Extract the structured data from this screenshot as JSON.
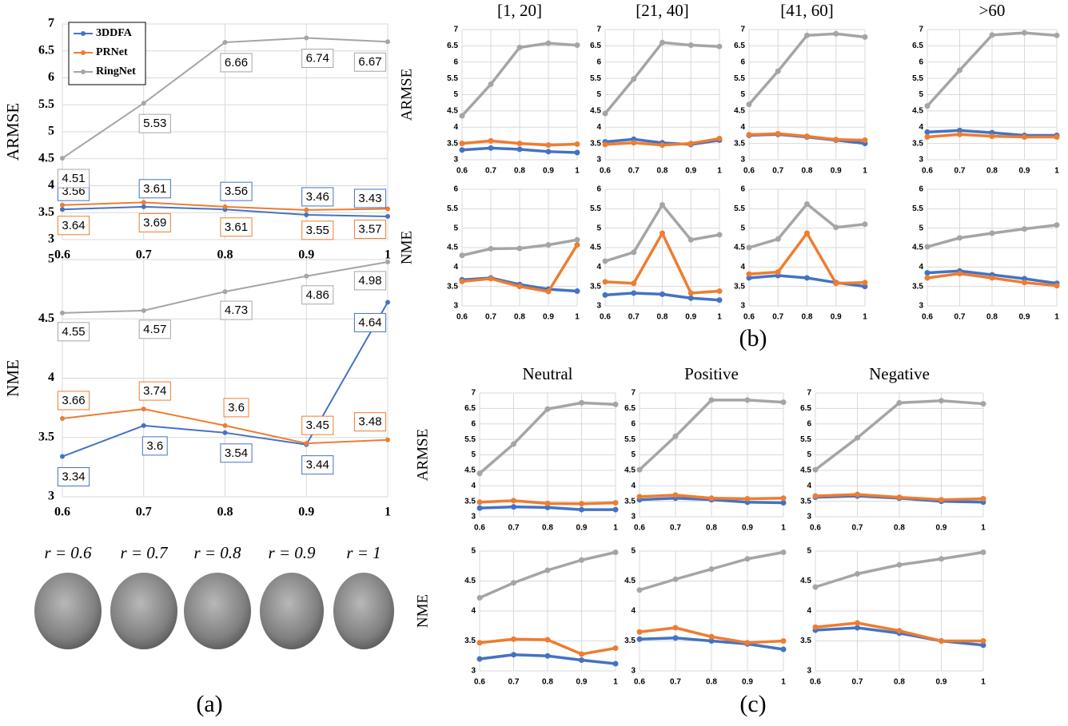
{
  "figure": {
    "panel_labels": [
      "(a)",
      "(b)",
      "(c)"
    ],
    "face_labels": [
      "r = 0.6",
      "r = 0.7",
      "r = 0.8",
      "r = 0.9",
      "r = 1"
    ]
  },
  "chart_data": [
    {
      "type": "line",
      "ylabel": "ARMSE",
      "x": [
        0.6,
        0.7,
        0.8,
        0.9,
        1
      ],
      "xlim": [
        0.6,
        1
      ],
      "xticks": [
        0.6,
        0.7,
        0.8,
        0.9,
        1
      ],
      "ylim": [
        3,
        7
      ],
      "yticks": [
        3,
        3.5,
        4,
        4.5,
        5,
        5.5,
        6,
        6.5,
        7
      ],
      "grid": true,
      "legend": "upper left",
      "data_labels": true,
      "series": [
        {
          "name": "3DDFA",
          "color": "#4472c4",
          "values": [
            3.56,
            3.61,
            3.56,
            3.46,
            3.43
          ]
        },
        {
          "name": "PRNet",
          "color": "#ed7d31",
          "values": [
            3.64,
            3.69,
            3.61,
            3.55,
            3.57
          ]
        },
        {
          "name": "RingNet",
          "color": "#a5a5a5",
          "values": [
            4.51,
            5.53,
            6.66,
            6.74,
            6.67
          ]
        }
      ]
    },
    {
      "type": "line",
      "ylabel": "NME",
      "x": [
        0.6,
        0.7,
        0.8,
        0.9,
        1
      ],
      "xlim": [
        0.6,
        1
      ],
      "xticks": [
        0.6,
        0.7,
        0.8,
        0.9,
        1
      ],
      "ylim": [
        3,
        5
      ],
      "yticks": [
        3,
        3.5,
        4,
        4.5,
        5
      ],
      "grid": true,
      "data_labels": true,
      "series": [
        {
          "color": "#4472c4",
          "values": [
            3.34,
            3.6,
            3.54,
            3.44,
            4.64
          ]
        },
        {
          "color": "#ed7d31",
          "values": [
            3.66,
            3.74,
            3.6,
            3.45,
            3.48
          ]
        },
        {
          "color": "#a5a5a5",
          "values": [
            4.55,
            4.57,
            4.73,
            4.86,
            4.98
          ]
        }
      ]
    },
    {
      "type": "line",
      "title": "[1, 20]",
      "ylabel": "ARMSE",
      "x": [
        0.6,
        0.7,
        0.8,
        0.9,
        1
      ],
      "xlim": [
        0.6,
        1
      ],
      "xticks": [
        0.6,
        0.7,
        0.8,
        0.9,
        1
      ],
      "ylim": [
        3,
        7
      ],
      "yticks": [
        3,
        3.5,
        4,
        4.5,
        5,
        5.5,
        6,
        6.5,
        7
      ],
      "grid": true,
      "series": [
        {
          "color": "#4472c4",
          "values": [
            3.3,
            3.36,
            3.32,
            3.25,
            3.22
          ]
        },
        {
          "color": "#ed7d31",
          "values": [
            3.5,
            3.58,
            3.5,
            3.45,
            3.48
          ]
        },
        {
          "color": "#a5a5a5",
          "values": [
            4.35,
            5.32,
            6.45,
            6.58,
            6.52
          ]
        }
      ]
    },
    {
      "type": "line",
      "title": "[21, 40]",
      "x": [
        0.6,
        0.7,
        0.8,
        0.9,
        1
      ],
      "xlim": [
        0.6,
        1
      ],
      "xticks": [
        0.6,
        0.7,
        0.8,
        0.9,
        1
      ],
      "ylim": [
        3,
        7
      ],
      "yticks": [
        3,
        3.5,
        4,
        4.5,
        5,
        5.5,
        6,
        6.5,
        7
      ],
      "grid": true,
      "series": [
        {
          "color": "#4472c4",
          "values": [
            3.55,
            3.63,
            3.52,
            3.47,
            3.6
          ]
        },
        {
          "color": "#ed7d31",
          "values": [
            3.47,
            3.52,
            3.45,
            3.5,
            3.65
          ]
        },
        {
          "color": "#a5a5a5",
          "values": [
            4.42,
            5.48,
            6.6,
            6.52,
            6.48
          ]
        }
      ]
    },
    {
      "type": "line",
      "title": "[41, 60]",
      "x": [
        0.6,
        0.7,
        0.8,
        0.9,
        1
      ],
      "xlim": [
        0.6,
        1
      ],
      "xticks": [
        0.6,
        0.7,
        0.8,
        0.9,
        1
      ],
      "ylim": [
        3,
        7
      ],
      "yticks": [
        3,
        3.5,
        4,
        4.5,
        5,
        5.5,
        6,
        6.5,
        7
      ],
      "grid": true,
      "series": [
        {
          "color": "#4472c4",
          "values": [
            3.75,
            3.78,
            3.7,
            3.6,
            3.5
          ]
        },
        {
          "color": "#ed7d31",
          "values": [
            3.77,
            3.8,
            3.72,
            3.62,
            3.6
          ]
        },
        {
          "color": "#a5a5a5",
          "values": [
            4.7,
            5.72,
            6.82,
            6.87,
            6.77
          ]
        }
      ]
    },
    {
      "type": "line",
      "title": ">60",
      "x": [
        0.6,
        0.7,
        0.8,
        0.9,
        1
      ],
      "xlim": [
        0.6,
        1
      ],
      "xticks": [
        0.6,
        0.7,
        0.8,
        0.9,
        1
      ],
      "ylim": [
        3,
        7
      ],
      "yticks": [
        3,
        3.5,
        4,
        4.5,
        5,
        5.5,
        6,
        6.5,
        7
      ],
      "grid": true,
      "series": [
        {
          "color": "#4472c4",
          "values": [
            3.85,
            3.9,
            3.83,
            3.75,
            3.75
          ]
        },
        {
          "color": "#ed7d31",
          "values": [
            3.7,
            3.78,
            3.72,
            3.7,
            3.7
          ]
        },
        {
          "color": "#a5a5a5",
          "values": [
            4.65,
            5.75,
            6.83,
            6.9,
            6.82
          ]
        }
      ]
    },
    {
      "type": "line",
      "ylabel": "NME",
      "x": [
        0.6,
        0.7,
        0.8,
        0.9,
        1
      ],
      "xlim": [
        0.6,
        1
      ],
      "xticks": [
        0.6,
        0.7,
        0.8,
        0.9,
        1
      ],
      "ylim": [
        3,
        6
      ],
      "yticks": [
        3,
        3.5,
        4,
        4.5,
        5,
        5.5,
        6
      ],
      "grid": true,
      "series": [
        {
          "color": "#4472c4",
          "values": [
            3.67,
            3.72,
            3.55,
            3.43,
            3.38
          ]
        },
        {
          "color": "#ed7d31",
          "values": [
            3.63,
            3.7,
            3.5,
            3.37,
            4.57
          ]
        },
        {
          "color": "#a5a5a5",
          "values": [
            4.3,
            4.47,
            4.48,
            4.57,
            4.7
          ]
        }
      ]
    },
    {
      "type": "line",
      "x": [
        0.6,
        0.7,
        0.8,
        0.9,
        1
      ],
      "xlim": [
        0.6,
        1
      ],
      "xticks": [
        0.6,
        0.7,
        0.8,
        0.9,
        1
      ],
      "ylim": [
        3,
        6
      ],
      "yticks": [
        3,
        3.5,
        4,
        4.5,
        5,
        5.5,
        6
      ],
      "grid": true,
      "series": [
        {
          "color": "#4472c4",
          "values": [
            3.28,
            3.33,
            3.3,
            3.2,
            3.15
          ]
        },
        {
          "color": "#ed7d31",
          "values": [
            3.62,
            3.58,
            4.87,
            3.33,
            3.38
          ]
        },
        {
          "color": "#a5a5a5",
          "values": [
            4.15,
            4.38,
            5.6,
            4.7,
            4.83
          ]
        }
      ]
    },
    {
      "type": "line",
      "x": [
        0.6,
        0.7,
        0.8,
        0.9,
        1
      ],
      "xlim": [
        0.6,
        1
      ],
      "xticks": [
        0.6,
        0.7,
        0.8,
        0.9,
        1
      ],
      "ylim": [
        3,
        6
      ],
      "yticks": [
        3,
        3.5,
        4,
        4.5,
        5,
        5.5,
        6
      ],
      "grid": true,
      "series": [
        {
          "color": "#4472c4",
          "values": [
            3.72,
            3.78,
            3.72,
            3.6,
            3.5
          ]
        },
        {
          "color": "#ed7d31",
          "values": [
            3.82,
            3.87,
            4.87,
            3.58,
            3.6
          ]
        },
        {
          "color": "#a5a5a5",
          "values": [
            4.5,
            4.72,
            5.62,
            5.02,
            5.1
          ]
        }
      ]
    },
    {
      "type": "line",
      "x": [
        0.6,
        0.7,
        0.8,
        0.9,
        1
      ],
      "xlim": [
        0.6,
        1
      ],
      "xticks": [
        0.6,
        0.7,
        0.8,
        0.9,
        1
      ],
      "ylim": [
        3,
        6
      ],
      "yticks": [
        3,
        3.5,
        4,
        4.5,
        5,
        5.5,
        6
      ],
      "grid": true,
      "series": [
        {
          "color": "#4472c4",
          "values": [
            3.85,
            3.9,
            3.8,
            3.7,
            3.58
          ]
        },
        {
          "color": "#ed7d31",
          "values": [
            3.72,
            3.83,
            3.72,
            3.6,
            3.52
          ]
        },
        {
          "color": "#a5a5a5",
          "values": [
            4.52,
            4.75,
            4.87,
            4.98,
            5.08
          ]
        }
      ]
    },
    {
      "type": "line",
      "title": "Neutral",
      "ylabel": "ARMSE",
      "x": [
        0.6,
        0.7,
        0.8,
        0.9,
        1
      ],
      "xlim": [
        0.6,
        1
      ],
      "xticks": [
        0.6,
        0.7,
        0.8,
        0.9,
        1
      ],
      "ylim": [
        3,
        7
      ],
      "yticks": [
        3,
        3.5,
        4,
        4.5,
        5,
        5.5,
        6,
        6.5,
        7
      ],
      "grid": true,
      "series": [
        {
          "color": "#4472c4",
          "values": [
            3.28,
            3.32,
            3.3,
            3.23,
            3.23
          ]
        },
        {
          "color": "#ed7d31",
          "values": [
            3.47,
            3.52,
            3.43,
            3.42,
            3.45
          ]
        },
        {
          "color": "#a5a5a5",
          "values": [
            4.4,
            5.35,
            6.48,
            6.68,
            6.63
          ]
        }
      ]
    },
    {
      "type": "line",
      "title": "Positive",
      "x": [
        0.6,
        0.7,
        0.8,
        0.9,
        1
      ],
      "xlim": [
        0.6,
        1
      ],
      "xticks": [
        0.6,
        0.7,
        0.8,
        0.9,
        1
      ],
      "ylim": [
        3,
        7
      ],
      "yticks": [
        3,
        3.5,
        4,
        4.5,
        5,
        5.5,
        6,
        6.5,
        7
      ],
      "grid": true,
      "series": [
        {
          "color": "#4472c4",
          "values": [
            3.55,
            3.6,
            3.55,
            3.47,
            3.45
          ]
        },
        {
          "color": "#ed7d31",
          "values": [
            3.65,
            3.7,
            3.6,
            3.58,
            3.6
          ]
        },
        {
          "color": "#a5a5a5",
          "values": [
            4.52,
            5.6,
            6.77,
            6.77,
            6.7
          ]
        }
      ]
    },
    {
      "type": "line",
      "title": "Negative",
      "x": [
        0.6,
        0.7,
        0.8,
        0.9,
        1
      ],
      "xlim": [
        0.6,
        1
      ],
      "xticks": [
        0.6,
        0.7,
        0.8,
        0.9,
        1
      ],
      "ylim": [
        3,
        7
      ],
      "yticks": [
        3,
        3.5,
        4,
        4.5,
        5,
        5.5,
        6,
        6.5,
        7
      ],
      "grid": true,
      "series": [
        {
          "color": "#4472c4",
          "values": [
            3.63,
            3.67,
            3.6,
            3.5,
            3.47
          ]
        },
        {
          "color": "#ed7d31",
          "values": [
            3.67,
            3.72,
            3.63,
            3.55,
            3.58
          ]
        },
        {
          "color": "#a5a5a5",
          "values": [
            4.52,
            5.55,
            6.68,
            6.75,
            6.65
          ]
        }
      ]
    },
    {
      "type": "line",
      "ylabel": "NME",
      "x": [
        0.6,
        0.7,
        0.8,
        0.9,
        1
      ],
      "xlim": [
        0.6,
        1
      ],
      "xticks": [
        0.6,
        0.7,
        0.8,
        0.9,
        1
      ],
      "ylim": [
        3,
        5
      ],
      "yticks": [
        3,
        3.5,
        4,
        4.5,
        5
      ],
      "grid": true,
      "series": [
        {
          "color": "#4472c4",
          "values": [
            3.2,
            3.27,
            3.25,
            3.18,
            3.12
          ]
        },
        {
          "color": "#ed7d31",
          "values": [
            3.47,
            3.53,
            3.52,
            3.28,
            3.38
          ]
        },
        {
          "color": "#a5a5a5",
          "values": [
            4.22,
            4.47,
            4.68,
            4.85,
            4.98
          ]
        }
      ]
    },
    {
      "type": "line",
      "x": [
        0.6,
        0.7,
        0.8,
        0.9,
        1
      ],
      "xlim": [
        0.6,
        1
      ],
      "xticks": [
        0.6,
        0.7,
        0.8,
        0.9,
        1
      ],
      "ylim": [
        3,
        5
      ],
      "yticks": [
        3,
        3.5,
        4,
        4.5,
        5
      ],
      "grid": true,
      "series": [
        {
          "color": "#4472c4",
          "values": [
            3.53,
            3.55,
            3.5,
            3.45,
            3.36
          ]
        },
        {
          "color": "#ed7d31",
          "values": [
            3.65,
            3.72,
            3.57,
            3.47,
            3.5
          ]
        },
        {
          "color": "#a5a5a5",
          "values": [
            4.35,
            4.53,
            4.7,
            4.87,
            4.98
          ]
        }
      ]
    },
    {
      "type": "line",
      "x": [
        0.6,
        0.7,
        0.8,
        0.9,
        1
      ],
      "xlim": [
        0.6,
        1
      ],
      "xticks": [
        0.6,
        0.7,
        0.8,
        0.9,
        1
      ],
      "ylim": [
        3,
        5
      ],
      "yticks": [
        3,
        3.5,
        4,
        4.5,
        5
      ],
      "grid": true,
      "series": [
        {
          "color": "#4472c4",
          "values": [
            3.68,
            3.72,
            3.63,
            3.5,
            3.43
          ]
        },
        {
          "color": "#ed7d31",
          "values": [
            3.73,
            3.8,
            3.67,
            3.5,
            3.5
          ]
        },
        {
          "color": "#a5a5a5",
          "values": [
            4.4,
            4.62,
            4.77,
            4.87,
            4.98
          ]
        }
      ]
    }
  ]
}
